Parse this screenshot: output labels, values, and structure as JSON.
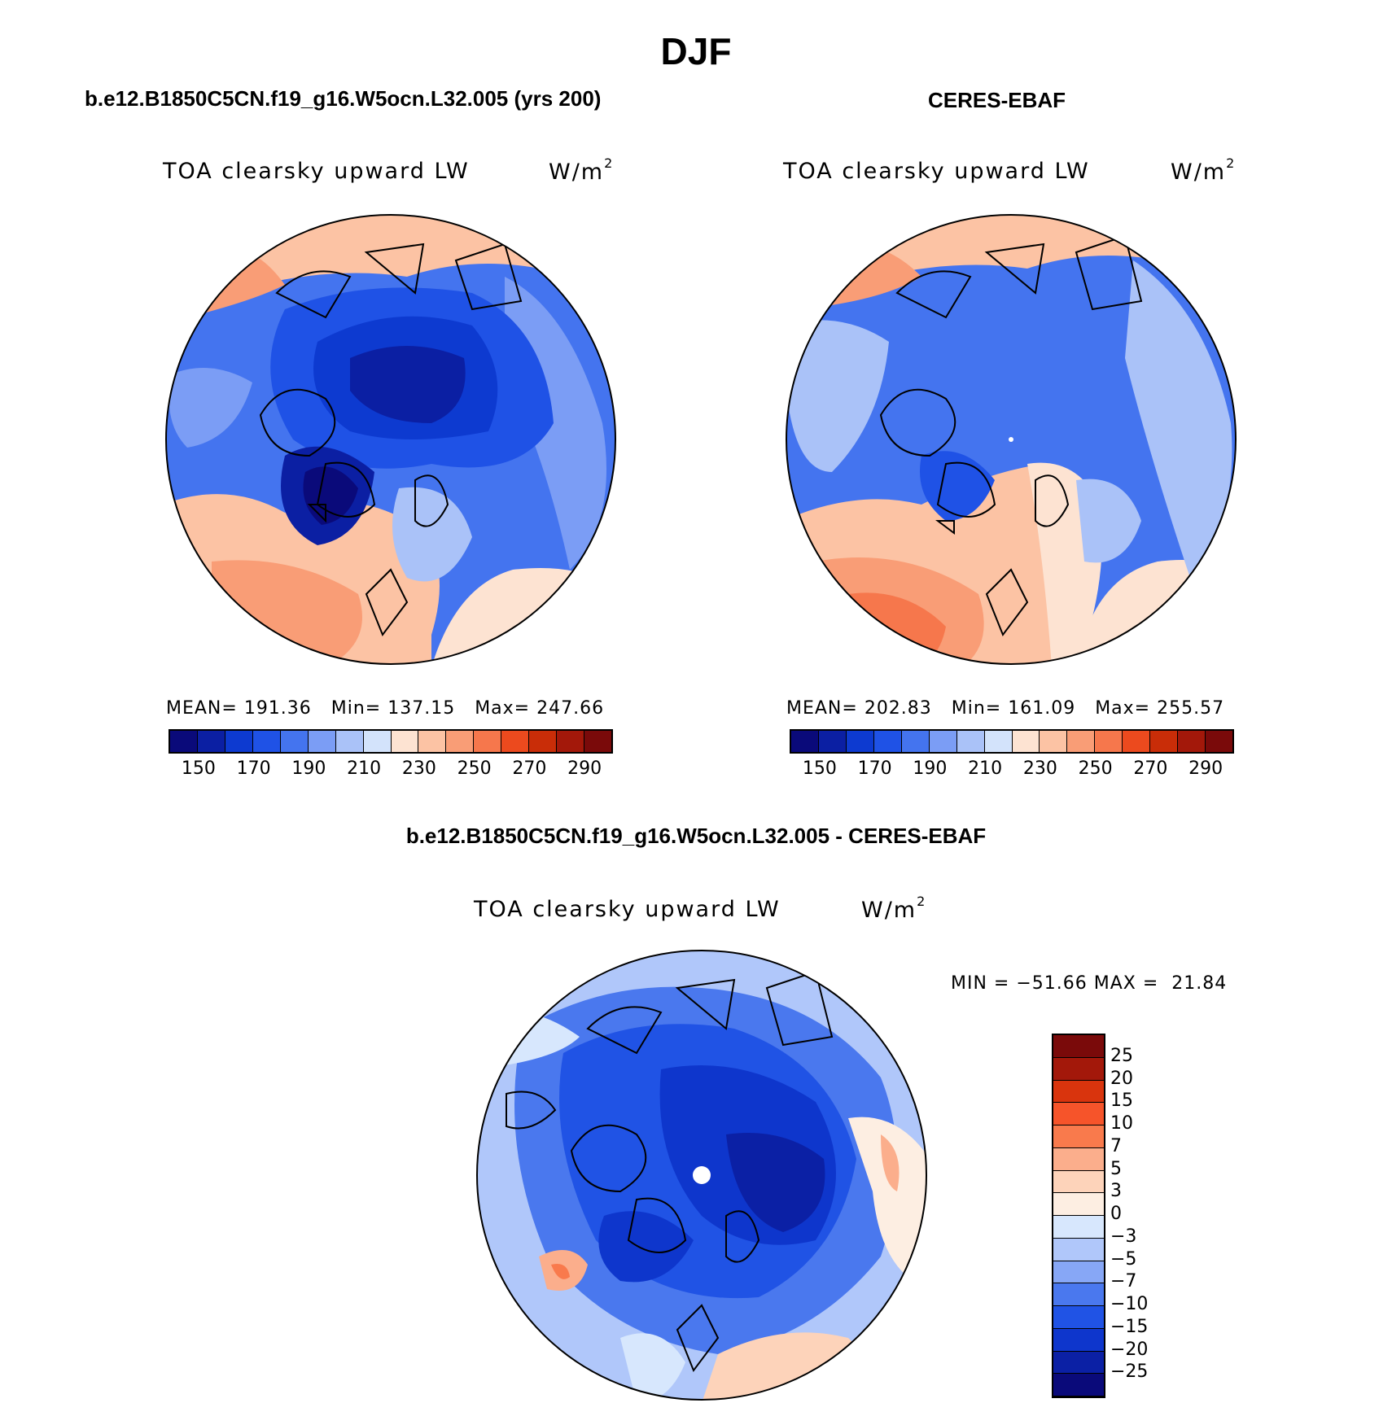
{
  "main_title": "DJF",
  "panels": {
    "model": {
      "title": "b.e12.B1850C5CN.f19_g16.W5ocn.L32.005 (yrs 200)",
      "variable": "TOA clearsky upward LW",
      "units": "W/m",
      "units_sup": "2",
      "stats": "MEAN= 191.36   Min= 137.15   Max= 247.66",
      "colorbar_ticks": [
        "150",
        "170",
        "190",
        "210",
        "230",
        "250",
        "270",
        "290"
      ]
    },
    "obs": {
      "title": "CERES-EBAF",
      "variable": "TOA clearsky upward LW",
      "units": "W/m",
      "units_sup": "2",
      "stats": "MEAN= 202.83   Min= 161.09   Max= 255.57",
      "colorbar_ticks": [
        "150",
        "170",
        "190",
        "210",
        "230",
        "250",
        "270",
        "290"
      ]
    },
    "diff": {
      "title": "b.e12.B1850C5CN.f19_g16.W5ocn.L32.005 - CERES-EBAF",
      "variable": "TOA clearsky upward LW",
      "units": "W/m",
      "units_sup": "2",
      "stats": "MIN = −51.66 MAX =  21.84",
      "colorbar_ticks": [
        "25",
        "20",
        "15",
        "10",
        "7",
        "5",
        "3",
        "0",
        "−3",
        "−5",
        "−7",
        "−10",
        "−15",
        "−20",
        "−25"
      ]
    }
  },
  "colors": {
    "abs_scale": [
      "#0a0a7a",
      "#0b1fa3",
      "#0d3ad0",
      "#1f52e6",
      "#4474ef",
      "#7b9df5",
      "#aac2f8",
      "#d3e3fb",
      "#fde3d2",
      "#fcc3a4",
      "#f99d76",
      "#f6774c",
      "#ec4a1e",
      "#c92d08",
      "#a3180a",
      "#7a0a0a"
    ],
    "diff_scale": [
      "#7a0a0a",
      "#a3180a",
      "#d9340d",
      "#f6542a",
      "#f97a4c",
      "#fbae8c",
      "#fdd3ba",
      "#fdeee2",
      "#d7e7fd",
      "#b0c7fa",
      "#87a7f6",
      "#4a78ee",
      "#2053e5",
      "#0e36cc",
      "#0b20a5",
      "#0a0a7a"
    ]
  }
}
